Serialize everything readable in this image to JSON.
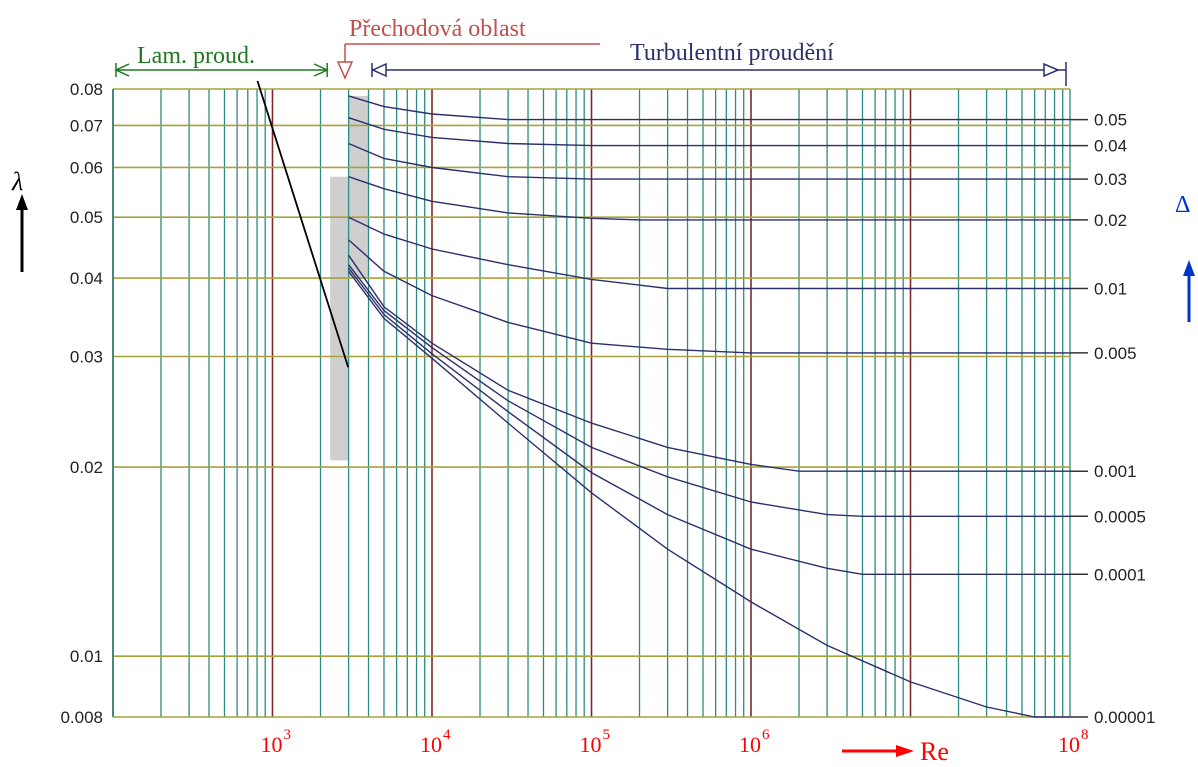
{
  "chart_data": {
    "type": "line",
    "title": "",
    "xlabel": "Re",
    "ylabel": "λ",
    "right_axis_label": "Δ",
    "x_scale": "log",
    "y_scale": "log",
    "xlim": [
      100,
      100000000
    ],
    "ylim": [
      0.008,
      0.08
    ],
    "y_ticks": [
      {
        "value": 0.08,
        "label": "0.08"
      },
      {
        "value": 0.07,
        "label": "0.07"
      },
      {
        "value": 0.06,
        "label": "0.06"
      },
      {
        "value": 0.05,
        "label": "0.05"
      },
      {
        "value": 0.04,
        "label": "0.04"
      },
      {
        "value": 0.03,
        "label": "0.03"
      },
      {
        "value": 0.02,
        "label": "0.02"
      },
      {
        "value": 0.01,
        "label": "0.01"
      },
      {
        "value": 0.008,
        "label": "0.008"
      }
    ],
    "x_ticks": [
      {
        "value": 1000,
        "base": "10",
        "exp": "3"
      },
      {
        "value": 10000,
        "base": "10",
        "exp": "4"
      },
      {
        "value": 100000,
        "base": "10",
        "exp": "5"
      },
      {
        "value": 1000000,
        "base": "10",
        "exp": "6"
      },
      {
        "value": 100000000,
        "base": "10",
        "exp": "8"
      }
    ],
    "regions": [
      {
        "label": "Lam. proud.",
        "x_from": 100,
        "x_to": 2300,
        "color": "#1f7a1f"
      },
      {
        "label": "Přechodová oblast",
        "x_from": 2300,
        "x_to": 4000,
        "color": "#c0504d"
      },
      {
        "label": "Turbulentní proudění",
        "x_from": 4000,
        "x_to": 100000000,
        "color": "#2b2f6b"
      }
    ],
    "laminar_line": {
      "x": [
        1000,
        2300
      ],
      "y": [
        0.064,
        0.0278
      ]
    },
    "transition_band": [
      {
        "x_from": 2300,
        "x_to": 3000,
        "y_from": 0.0205,
        "y_to": 0.058
      },
      {
        "x_from": 3000,
        "x_to": 4000,
        "y_from": 0.04,
        "y_to": 0.078
      }
    ],
    "series": [
      {
        "name": "0.05",
        "x": [
          3000,
          5000,
          10000,
          30000,
          100000,
          100000000
        ],
        "y": [
          0.078,
          0.075,
          0.073,
          0.0715,
          0.0715,
          0.0715
        ]
      },
      {
        "name": "0.04",
        "x": [
          3000,
          5000,
          10000,
          30000,
          100000,
          100000000
        ],
        "y": [
          0.072,
          0.069,
          0.067,
          0.0655,
          0.065,
          0.065
        ]
      },
      {
        "name": "0.03",
        "x": [
          3000,
          5000,
          10000,
          30000,
          100000,
          100000000
        ],
        "y": [
          0.0655,
          0.062,
          0.06,
          0.058,
          0.0575,
          0.0575
        ]
      },
      {
        "name": "0.02",
        "x": [
          3000,
          5000,
          10000,
          30000,
          100000,
          200000,
          100000000
        ],
        "y": [
          0.058,
          0.0555,
          0.053,
          0.0508,
          0.0498,
          0.0495,
          0.0495
        ]
      },
      {
        "name": "0.01",
        "x": [
          3000,
          5000,
          10000,
          30000,
          100000,
          300000,
          100000000
        ],
        "y": [
          0.05,
          0.047,
          0.0445,
          0.042,
          0.0398,
          0.0385,
          0.0385
        ]
      },
      {
        "name": "0.005",
        "x": [
          3000,
          5000,
          10000,
          30000,
          100000,
          300000,
          1000000,
          100000000
        ],
        "y": [
          0.046,
          0.041,
          0.0375,
          0.034,
          0.0315,
          0.0308,
          0.0304,
          0.0304
        ]
      },
      {
        "name": "0.001",
        "x": [
          3000,
          5000,
          10000,
          30000,
          100000,
          300000,
          1000000,
          2000000,
          100000000
        ],
        "y": [
          0.0435,
          0.036,
          0.0315,
          0.0265,
          0.0235,
          0.0215,
          0.0202,
          0.0197,
          0.0197
        ]
      },
      {
        "name": "0.0005",
        "x": [
          3000,
          5000,
          10000,
          30000,
          100000,
          300000,
          1000000,
          3000000,
          5000000,
          100000000
        ],
        "y": [
          0.042,
          0.0355,
          0.031,
          0.0255,
          0.0215,
          0.0193,
          0.0176,
          0.0168,
          0.0167,
          0.0167
        ]
      },
      {
        "name": "0.0001",
        "x": [
          3000,
          5000,
          10000,
          30000,
          100000,
          300000,
          1000000,
          3000000,
          5000000,
          100000000
        ],
        "y": [
          0.0415,
          0.035,
          0.0303,
          0.0245,
          0.0196,
          0.0168,
          0.0148,
          0.0138,
          0.0135,
          0.0135
        ]
      },
      {
        "name": "0.00001",
        "x": [
          3000,
          5000,
          10000,
          30000,
          100000,
          300000,
          1000000,
          3000000,
          10000000,
          30000000,
          60000000,
          100000000
        ],
        "y": [
          0.041,
          0.0345,
          0.0298,
          0.0235,
          0.0182,
          0.0148,
          0.0122,
          0.0104,
          0.0091,
          0.0083,
          0.008,
          0.008
        ]
      }
    ],
    "grid": true,
    "legend": "none",
    "colors": {
      "horizontal_grid": "#a8a23a",
      "vertical_grid": "#2e8a84",
      "decade_grid": "#7a2a2a",
      "curves": "#2b2f6b",
      "laminar": "#000000",
      "band": "#cfcfcf",
      "tick_red": "#ff0000",
      "delta_blue": "#0033cc"
    }
  }
}
